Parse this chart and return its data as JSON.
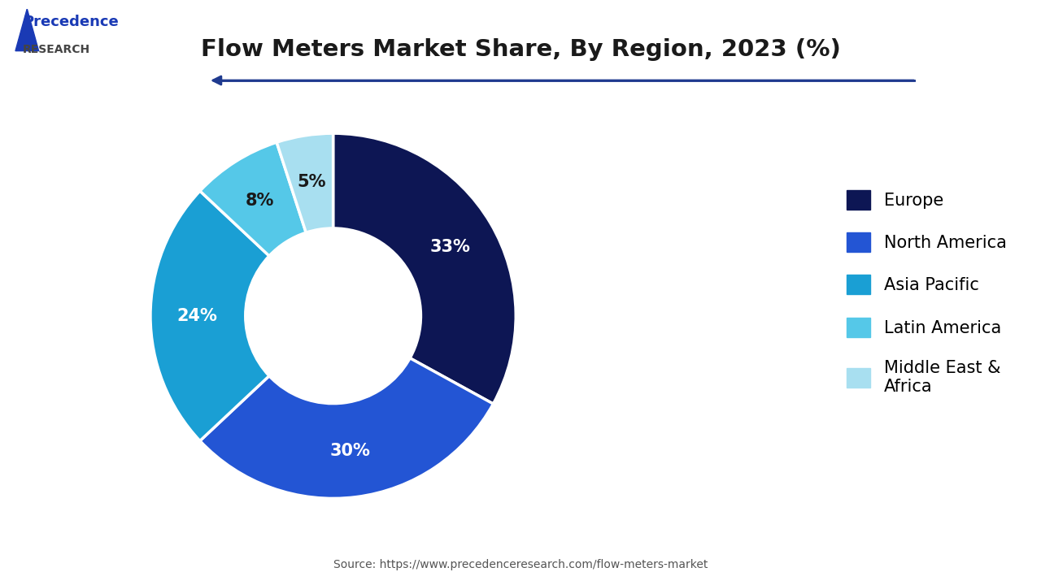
{
  "title": "Flow Meters Market Share, By Region, 2023 (%)",
  "source": "Source: https://www.precedenceresearch.com/flow-meters-market",
  "segments": [
    {
      "label": "Europe",
      "value": 33,
      "color": "#0d1654"
    },
    {
      "label": "North America",
      "value": 30,
      "color": "#2355d4"
    },
    {
      "label": "Asia Pacific",
      "value": 24,
      "color": "#1a9fd4"
    },
    {
      "label": "Latin America",
      "value": 8,
      "color": "#55c8e8"
    },
    {
      "label": "Middle East &\nAfrica",
      "value": 5,
      "color": "#a8dff0"
    }
  ],
  "start_angle": 90,
  "background_color": "#ffffff",
  "title_fontsize": 21,
  "label_fontsize": 15,
  "legend_fontsize": 15,
  "label_colors": [
    "white",
    "white",
    "white",
    "#1a1a1a",
    "#1a1a1a"
  ]
}
